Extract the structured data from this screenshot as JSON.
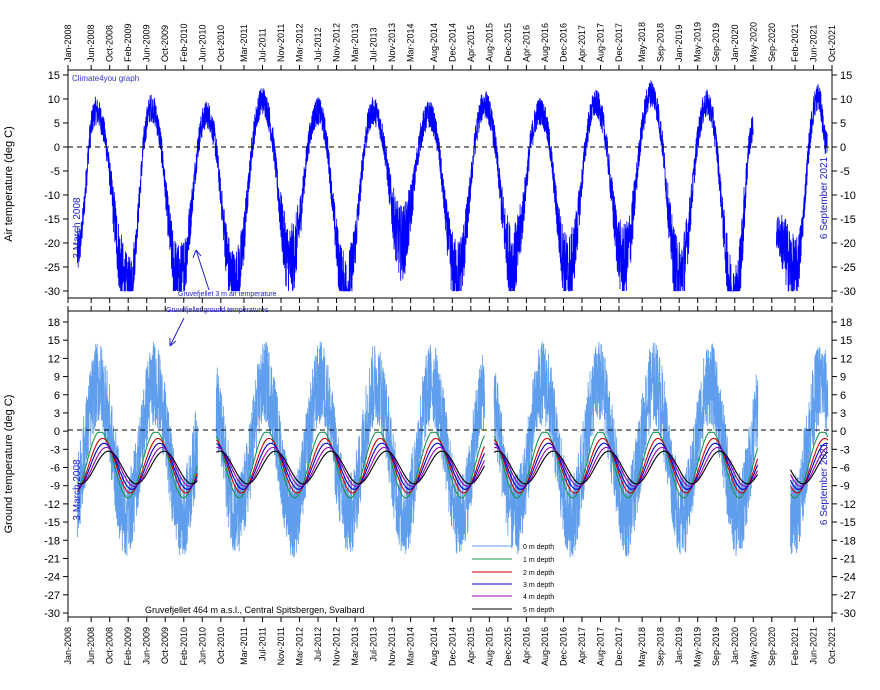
{
  "chart_data": [
    {
      "type": "line",
      "panel": "air",
      "ylabel": "Air temperature (deg C)",
      "ylim": [
        -30,
        15
      ],
      "yticks": [
        15,
        10,
        5,
        0,
        -5,
        -10,
        -15,
        -20,
        -25,
        -30
      ],
      "xlim": [
        "2008-01-01",
        "2021-10-01"
      ],
      "zero_line": "dashed",
      "watermark": "Climate4you graph",
      "left_note": "3 March 2008",
      "right_note": "6 September 2021",
      "annotation": "Gruvefjellet 3 m air temperature",
      "series": [
        {
          "name": "Gruvefjellet 3 m air temperature",
          "color": "#0000ff",
          "x": [
            "2008-03",
            "2008-07",
            "2009-02",
            "2009-07",
            "2010-01",
            "2010-07",
            "2011-01",
            "2011-07",
            "2012-01",
            "2012-07",
            "2013-01",
            "2013-07",
            "2014-01",
            "2014-07",
            "2015-01",
            "2015-07",
            "2016-01",
            "2016-07",
            "2017-01",
            "2017-07",
            "2018-01",
            "2018-07",
            "2019-01",
            "2019-07",
            "2020-01",
            "2020-05",
            "2020-10",
            "2021-02",
            "2021-07",
            "2021-09"
          ],
          "values": [
            -22,
            10,
            -30,
            11,
            -28,
            9,
            -29,
            13,
            -24,
            10,
            -30,
            10,
            -20,
            9,
            -27,
            12,
            -24,
            10,
            -26,
            12,
            -24,
            15,
            -27,
            12,
            -32,
            5,
            -18,
            -26,
            14,
            0
          ]
        }
      ]
    },
    {
      "type": "line",
      "panel": "ground",
      "ylabel": "Ground temperature (deg C)",
      "ylim": [
        -30,
        20
      ],
      "yticks": [
        18,
        15,
        12,
        9,
        6,
        3,
        0,
        -3,
        -6,
        -9,
        -12,
        -15,
        -18,
        -21,
        -24,
        -27,
        -30
      ],
      "xlim": [
        "2008-01-01",
        "2021-10-01"
      ],
      "zero_line": "dashed",
      "left_note": "3 March 2008",
      "right_note": "6 September 2021",
      "annotation": "Gruvefjellet ground temperatures",
      "caption": "Gruvefjellet 464 m a.s.l., Central Spitsbergen, Svalbard",
      "series": [
        {
          "name": "0 m depth",
          "color": "#5f9ded",
          "amplitude": 14,
          "mean": -3,
          "lag": 0
        },
        {
          "name": "1 m depth",
          "color": "#1a9650",
          "amplitude": 5.5,
          "mean": -5.5,
          "lag": 0.03
        },
        {
          "name": "2 m depth",
          "color": "#cc0000",
          "amplitude": 4.5,
          "mean": -5.7,
          "lag": 0.07
        },
        {
          "name": "3 m depth",
          "color": "#0000cc",
          "amplitude": 3.8,
          "mean": -5.8,
          "lag": 0.1
        },
        {
          "name": "4 m depth",
          "color": "#9a00b5",
          "amplitude": 3.2,
          "mean": -5.9,
          "lag": 0.14
        },
        {
          "name": "5 m depth",
          "color": "#000000",
          "amplitude": 2.7,
          "mean": -6.0,
          "lag": 0.18
        }
      ],
      "gaps": [
        [
          "2010-05",
          "2010-09"
        ],
        [
          "2015-07",
          "2015-09"
        ],
        [
          "2020-06",
          "2021-01"
        ]
      ]
    }
  ],
  "x_tick_labels": [
    "Jan-2008",
    "Jun-2008",
    "Oct-2008",
    "Feb-2009",
    "Jun-2009",
    "Oct-2009",
    "Feb-2010",
    "Jun-2010",
    "Oct-2010",
    "Mar-2011",
    "Jul-2011",
    "Nov-2011",
    "Mar-2012",
    "Jul-2012",
    "Nov-2012",
    "Mar-2013",
    "Jul-2013",
    "Nov-2013",
    "Mar-2014",
    "Aug-2014",
    "Dec-2014",
    "Apr-2015",
    "Aug-2015",
    "Dec-2015",
    "Apr-2016",
    "Aug-2016",
    "Dec-2016",
    "Apr-2017",
    "Aug-2017",
    "Dec-2017",
    "May-2018",
    "Sep-2018",
    "Jan-2019",
    "May-2019",
    "Sep-2019",
    "Jan-2020",
    "May-2020",
    "Sep-2020",
    "Feb-2021",
    "Jun-2021",
    "Oct-2021"
  ]
}
